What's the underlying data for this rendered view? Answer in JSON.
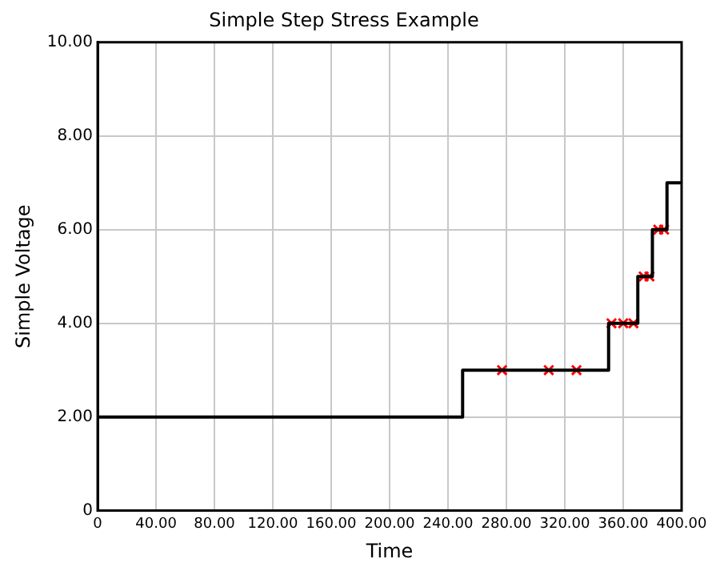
{
  "chart_data": {
    "type": "step",
    "title": "Simple Step Stress Example",
    "xlabel": "Time",
    "ylabel": "Simple Voltage",
    "series": [
      {
        "color": "#000000",
        "x": [
          0,
          250,
          350,
          370,
          380,
          390,
          400
        ],
        "values": [
          2,
          3,
          4,
          5,
          6,
          7,
          7
        ]
      },
      {
        "type": "scatter",
        "color": "#ff0000",
        "marker": "cross",
        "x": [
          277,
          309,
          328,
          352,
          360,
          367,
          374,
          378,
          384,
          388
        ],
        "values": [
          3,
          3,
          3,
          4,
          4,
          4,
          5,
          5,
          6,
          6
        ]
      }
    ],
    "xlim": [
      0,
      400
    ],
    "xticks": [
      0,
      {
        "value": 40,
        "label": "40.00"
      },
      {
        "value": 80,
        "label": "80.00"
      },
      {
        "value": 120,
        "label": "120.00"
      },
      {
        "value": 160,
        "label": "160.00"
      },
      {
        "value": 200,
        "label": "200.00"
      },
      {
        "value": 240,
        "label": "240.00"
      },
      {
        "value": 280,
        "label": "280.00"
      },
      {
        "value": 320,
        "label": "320.00"
      },
      {
        "value": 360,
        "label": "360.00"
      },
      {
        "value": 400,
        "label": "400.00"
      }
    ],
    "ylim": [
      0,
      10
    ],
    "yticks": [
      0,
      {
        "value": 2,
        "label": "2.00"
      },
      {
        "value": 4,
        "label": "4.00"
      },
      {
        "value": 6,
        "label": "6.00"
      },
      {
        "value": 8,
        "label": "8.00"
      },
      {
        "value": 10,
        "label": "10.00"
      }
    ],
    "grid": true,
    "legend": false
  }
}
